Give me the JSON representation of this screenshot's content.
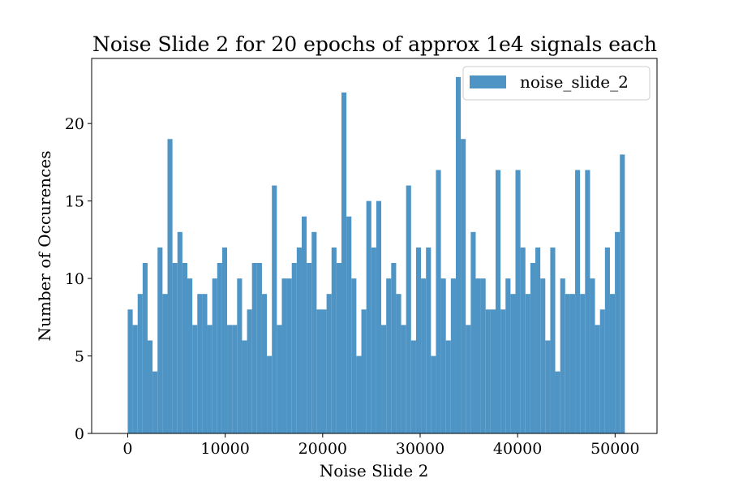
{
  "chart_data": {
    "type": "histogram",
    "title": "Noise Slide 2 for 20 epochs of approx 1e4 signals each",
    "xlabel": "Noise Slide 2",
    "ylabel": "Number of Occurences",
    "xlim": [
      -3700,
      54300
    ],
    "ylim": [
      0,
      24.2
    ],
    "x_ticks": [
      0,
      10000,
      20000,
      30000,
      40000,
      50000
    ],
    "y_ticks": [
      0,
      5,
      10,
      15,
      20
    ],
    "bin_range": [
      0,
      51000
    ],
    "bin_width": 510,
    "grid": false,
    "legend_position": "top-right",
    "bar_color": "#4e95c5",
    "series": [
      {
        "name": "noise_slide_2",
        "values": [
          8,
          7,
          9,
          11,
          6,
          4,
          12,
          9,
          19,
          11,
          13,
          11,
          10,
          7,
          9,
          9,
          7,
          10,
          11,
          12,
          7,
          7,
          10,
          6,
          8,
          11,
          11,
          9,
          5,
          16,
          7,
          10,
          10,
          11,
          12,
          14,
          11,
          13,
          8,
          8,
          9,
          12,
          11,
          22,
          14,
          10,
          5,
          8,
          15,
          12,
          15,
          7,
          10,
          11,
          9,
          7,
          16,
          6,
          12,
          10,
          12,
          5,
          17,
          10,
          6,
          10,
          23,
          19,
          7,
          13,
          10,
          10,
          8,
          8,
          17,
          8,
          10,
          9,
          17,
          12,
          9,
          11,
          12,
          10,
          6,
          12,
          4,
          10,
          9,
          9,
          17,
          9,
          17,
          10,
          7,
          8,
          12,
          9,
          13,
          18
        ]
      }
    ]
  }
}
